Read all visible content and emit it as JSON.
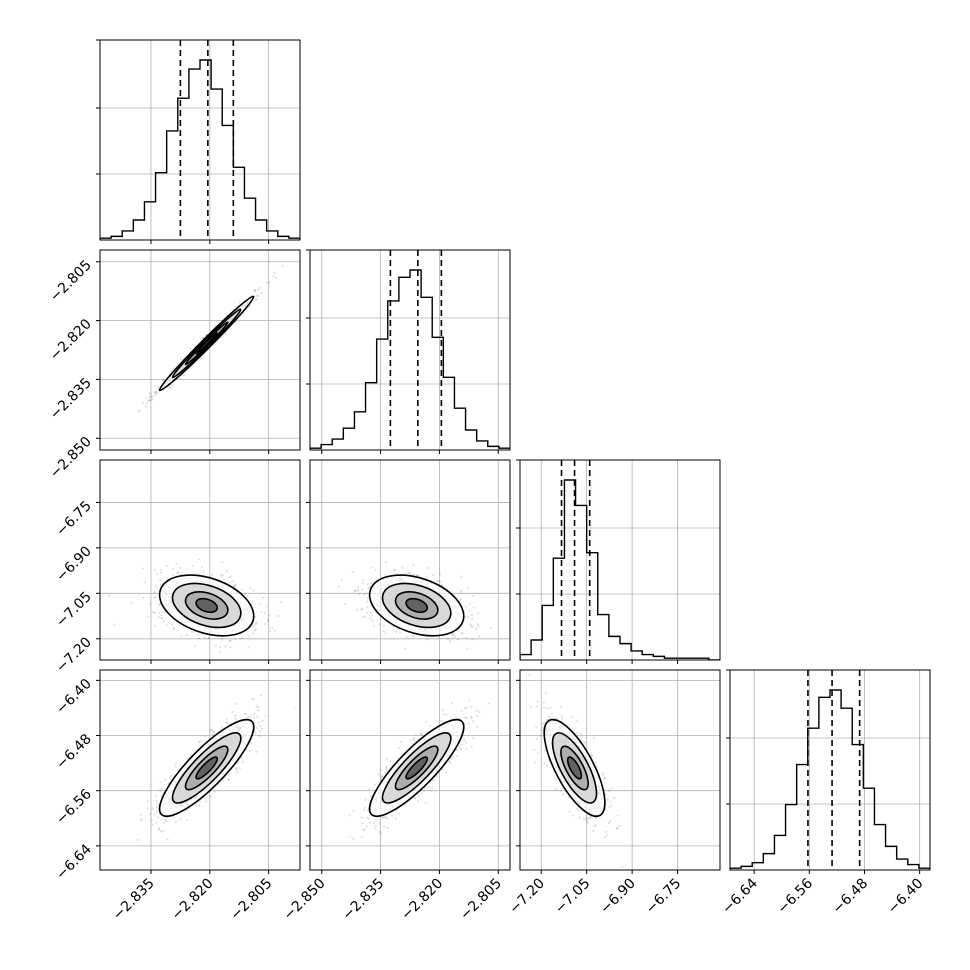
{
  "chart_data": {
    "type": "corner",
    "grid": true,
    "parameters": [
      {
        "range": [
          -2.848,
          -2.797
        ],
        "ticks": [
          -2.835,
          -2.82,
          -2.805
        ],
        "tick_labels": [
          "−2.835",
          "−2.820",
          "−2.805"
        ],
        "hist_counts": [
          1,
          2,
          5,
          11,
          21,
          37,
          60,
          78,
          94,
          99,
          83,
          63,
          40,
          23,
          11,
          5,
          2,
          1
        ],
        "quantiles": [
          -2.8275,
          -2.8205,
          -2.814
        ],
        "sample_mean": -2.8208,
        "sample_sd": 0.006
      },
      {
        "range": [
          -2.853,
          -2.802
        ],
        "ticks": [
          -2.85,
          -2.835,
          -2.82,
          -2.805
        ],
        "tick_labels": [
          "−2.850",
          "−2.835",
          "−2.820",
          "−2.805"
        ],
        "hist_counts": [
          1,
          3,
          6,
          12,
          21,
          37,
          61,
          82,
          95,
          99,
          84,
          62,
          40,
          23,
          11,
          5,
          2,
          1
        ],
        "quantiles": [
          -2.8325,
          -2.8255,
          -2.8195
        ],
        "sample_mean": -2.8258,
        "sample_sd": 0.006
      },
      {
        "range": [
          -7.27,
          -6.61
        ],
        "ticks": [
          -7.2,
          -7.05,
          -6.9,
          -6.75
        ],
        "tick_labels": [
          "−7.20",
          "−7.05",
          "−6.90",
          "−6.75"
        ],
        "hist_counts": [
          3,
          11,
          30,
          56,
          99,
          85,
          59,
          25,
          13,
          9,
          5,
          3,
          2,
          1,
          1,
          1,
          1,
          0
        ],
        "quantiles": [
          -7.133,
          -7.09,
          -7.04
        ],
        "sample_mean": -7.09,
        "sample_sd": 0.05
      },
      {
        "range": [
          -6.675,
          -6.385
        ],
        "ticks": [
          -6.64,
          -6.56,
          -6.48,
          -6.4
        ],
        "tick_labels": [
          "−6.64",
          "−6.56",
          "−6.48",
          "−6.40"
        ],
        "hist_counts": [
          1,
          2,
          4,
          9,
          19,
          36,
          58,
          78,
          95,
          99,
          89,
          69,
          45,
          25,
          13,
          6,
          3,
          1
        ],
        "quantiles": [
          -6.562,
          -6.527,
          -6.487
        ],
        "sample_mean": -6.527,
        "sample_sd": 0.035
      }
    ],
    "correlations": {
      "1-0": 0.99,
      "2-0": -0.35,
      "2-1": -0.35,
      "3-0": 0.85,
      "3-1": 0.85,
      "3-2": -0.72
    }
  }
}
